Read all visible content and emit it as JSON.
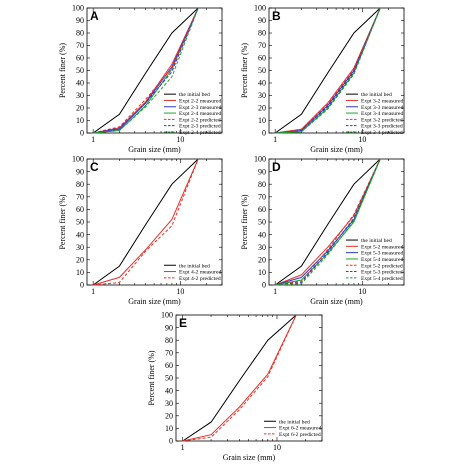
{
  "chart_data": [
    {
      "panel": "A",
      "type": "line",
      "xlabel": "Grain size (mm)",
      "ylabel": "Percent finer (%)",
      "xscale": "log",
      "xlim": [
        0.85,
        30
      ],
      "ylim": [
        0,
        100
      ],
      "xticks": [
        1,
        10
      ],
      "yticks": [
        0,
        10,
        20,
        30,
        40,
        50,
        60,
        70,
        80,
        90,
        100
      ],
      "legend_position": "top-right",
      "series": [
        {
          "name": "the initial bed",
          "color": "#000000",
          "dash": "solid",
          "x": [
            1,
            2,
            4,
            8,
            16
          ],
          "y": [
            0,
            15,
            48,
            80,
            100
          ]
        },
        {
          "name": "Expt 2-2 measured",
          "color": "#e8302a",
          "dash": "solid",
          "x": [
            1,
            2,
            4,
            8,
            16
          ],
          "y": [
            0,
            4,
            25,
            55,
            100
          ]
        },
        {
          "name": "Expt 2-3 measured",
          "color": "#2d3bd6",
          "dash": "solid",
          "x": [
            1,
            2,
            4,
            8,
            16
          ],
          "y": [
            0,
            3,
            24,
            53,
            100
          ]
        },
        {
          "name": "Expt 2-4 measured",
          "color": "#1fa32a",
          "dash": "solid",
          "x": [
            1,
            2,
            4,
            8,
            16
          ],
          "y": [
            0,
            2,
            22,
            51,
            100
          ]
        },
        {
          "name": "Expt 2-2 predicted",
          "color": "#e8302a",
          "dash": "dashed",
          "x": [
            1,
            2,
            4,
            8,
            16
          ],
          "y": [
            0,
            5,
            27,
            52,
            100
          ]
        },
        {
          "name": "Expt 2-3 predicted",
          "color": "#2d3bd6",
          "dash": "dashed",
          "x": [
            1,
            2,
            4,
            8,
            16
          ],
          "y": [
            0,
            4,
            24,
            49,
            100
          ]
        },
        {
          "name": "Expt 2-4 predicted",
          "color": "#1fa32a",
          "dash": "dashed",
          "x": [
            1,
            2,
            4,
            8,
            16
          ],
          "y": [
            0,
            2,
            21,
            45,
            100
          ]
        }
      ]
    },
    {
      "panel": "B",
      "type": "line",
      "xlabel": "Grain size (mm)",
      "ylabel": "Percent finer (%)",
      "xscale": "log",
      "xlim": [
        0.85,
        30
      ],
      "ylim": [
        0,
        100
      ],
      "xticks": [
        1,
        10
      ],
      "yticks": [
        0,
        10,
        20,
        30,
        40,
        50,
        60,
        70,
        80,
        90,
        100
      ],
      "legend_position": "top-right",
      "series": [
        {
          "name": "the initial bed",
          "color": "#000000",
          "dash": "solid",
          "x": [
            1,
            2,
            4,
            8,
            16
          ],
          "y": [
            0,
            15,
            48,
            80,
            100
          ]
        },
        {
          "name": "Expt 3-2 measured",
          "color": "#e8302a",
          "dash": "solid",
          "x": [
            1,
            2,
            4,
            8,
            16
          ],
          "y": [
            0,
            3,
            24,
            52,
            100
          ]
        },
        {
          "name": "Expt 3-3 measured",
          "color": "#2d3bd6",
          "dash": "solid",
          "x": [
            1,
            2,
            4,
            8,
            16
          ],
          "y": [
            0,
            2,
            22,
            50,
            100
          ]
        },
        {
          "name": "Expt 3-4 measured",
          "color": "#1fa32a",
          "dash": "solid",
          "x": [
            1,
            2,
            4,
            8,
            16
          ],
          "y": [
            0,
            1,
            20,
            48,
            100
          ]
        },
        {
          "name": "Expt 3-2 predicted",
          "color": "#e8302a",
          "dash": "dashed",
          "x": [
            1,
            2,
            4,
            8,
            16
          ],
          "y": [
            0,
            3,
            23,
            51,
            100
          ]
        },
        {
          "name": "Expt 3-3 predicted",
          "color": "#2d3bd6",
          "dash": "dashed",
          "x": [
            1,
            2,
            4,
            8,
            16
          ],
          "y": [
            0,
            2,
            21,
            49,
            100
          ]
        },
        {
          "name": "Expt 3-4 predicted",
          "color": "#1fa32a",
          "dash": "dashed",
          "x": [
            1,
            2,
            4,
            8,
            16
          ],
          "y": [
            0,
            1,
            19,
            47,
            100
          ]
        }
      ]
    },
    {
      "panel": "C",
      "type": "line",
      "xlabel": "Grain size (mm)",
      "ylabel": "Percent finer (%)",
      "xscale": "log",
      "xlim": [
        0.85,
        30
      ],
      "ylim": [
        0,
        100
      ],
      "xticks": [
        1,
        10
      ],
      "yticks": [
        0,
        10,
        20,
        30,
        40,
        50,
        60,
        70,
        80,
        90,
        100
      ],
      "legend_position": "bottom-right",
      "series": [
        {
          "name": "the initial bed",
          "color": "#000000",
          "dash": "solid",
          "x": [
            1,
            2,
            4,
            8,
            16
          ],
          "y": [
            0,
            15,
            48,
            80,
            100
          ]
        },
        {
          "name": "Expt 4-2 measured",
          "color": "#e8302a",
          "dash": "solid",
          "x": [
            1,
            2,
            4,
            8,
            16
          ],
          "y": [
            0,
            6,
            28,
            52,
            100
          ]
        },
        {
          "name": "Expt 4-2 predicted",
          "color": "#e8302a",
          "dash": "dashed",
          "x": [
            1,
            2,
            4,
            8,
            16
          ],
          "y": [
            0,
            2,
            27,
            47,
            100
          ]
        }
      ]
    },
    {
      "panel": "D",
      "type": "line",
      "xlabel": "Grain size (mm)",
      "ylabel": "Percent finer (%)",
      "xscale": "log",
      "xlim": [
        0.85,
        30
      ],
      "ylim": [
        0,
        100
      ],
      "xticks": [
        1,
        10
      ],
      "yticks": [
        0,
        10,
        20,
        30,
        40,
        50,
        60,
        70,
        80,
        90,
        100
      ],
      "legend_position": "bottom-right",
      "series": [
        {
          "name": "the initial bed",
          "color": "#000000",
          "dash": "solid",
          "x": [
            1,
            2,
            4,
            8,
            16
          ],
          "y": [
            0,
            15,
            48,
            80,
            100
          ]
        },
        {
          "name": "Expt 5-2 measured",
          "color": "#e8302a",
          "dash": "solid",
          "x": [
            1,
            2,
            4,
            8,
            16
          ],
          "y": [
            0,
            8,
            30,
            55,
            100
          ]
        },
        {
          "name": "Expt 5-3 measured",
          "color": "#2d3bd6",
          "dash": "solid",
          "x": [
            1,
            2,
            4,
            8,
            16
          ],
          "y": [
            0,
            6,
            27,
            52,
            100
          ]
        },
        {
          "name": "Expt 5-4 measured",
          "color": "#1fa32a",
          "dash": "solid",
          "x": [
            1,
            2,
            4,
            8,
            16
          ],
          "y": [
            0,
            4,
            25,
            50,
            100
          ]
        },
        {
          "name": "Expt 5-2 predicted",
          "color": "#e8302a",
          "dash": "dashed",
          "x": [
            1,
            2,
            4,
            8,
            16
          ],
          "y": [
            0,
            3,
            28,
            56,
            100
          ]
        },
        {
          "name": "Expt 5-3 predicted",
          "color": "#2d3bd6",
          "dash": "dashed",
          "x": [
            1,
            2,
            4,
            8,
            16
          ],
          "y": [
            0,
            2,
            26,
            53,
            100
          ]
        },
        {
          "name": "Expt 5-4 predicted",
          "color": "#1fa32a",
          "dash": "dashed",
          "x": [
            1,
            2,
            4,
            8,
            16
          ],
          "y": [
            0,
            1,
            24,
            51,
            100
          ]
        }
      ]
    },
    {
      "panel": "E",
      "type": "line",
      "xlabel": "Grain size (mm)",
      "ylabel": "Percent finer (%)",
      "xscale": "log",
      "xlim": [
        0.85,
        30
      ],
      "ylim": [
        0,
        100
      ],
      "xticks": [
        1,
        10
      ],
      "yticks": [
        0,
        10,
        20,
        30,
        40,
        50,
        60,
        70,
        80,
        90,
        100
      ],
      "legend_position": "bottom-right",
      "series": [
        {
          "name": "the initial bed",
          "color": "#000000",
          "dash": "solid",
          "x": [
            1,
            2,
            4,
            8,
            16
          ],
          "y": [
            0,
            15,
            48,
            80,
            100
          ]
        },
        {
          "name": "Expt 6-2 measured",
          "color": "#e8302a",
          "dash": "solid",
          "x": [
            1,
            2,
            4,
            8,
            16
          ],
          "y": [
            0,
            5,
            27,
            53,
            100
          ]
        },
        {
          "name": "Expt 6-2 predicted",
          "color": "#e8302a",
          "dash": "dashed",
          "x": [
            1,
            2,
            4,
            8,
            16
          ],
          "y": [
            0,
            3,
            25,
            51,
            100
          ]
        }
      ]
    }
  ]
}
